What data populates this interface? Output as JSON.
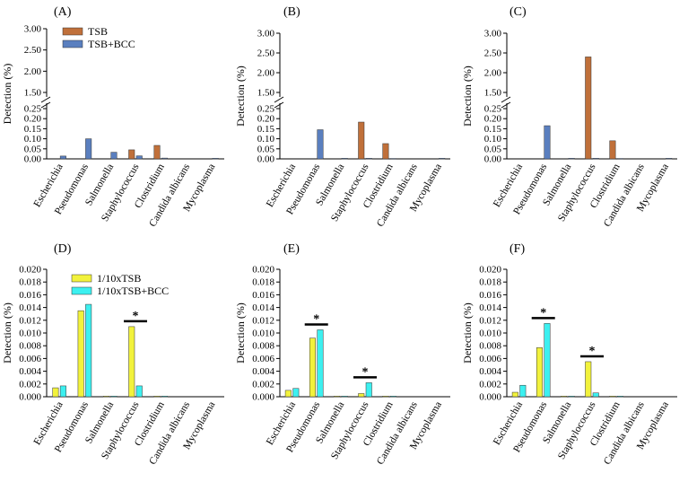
{
  "figure": {
    "categories": [
      "Escherichia",
      "Pseudomonas",
      "Salmonella",
      "Staphylococcus",
      "Clostridium",
      "Candida albicans",
      "Mycoplasma"
    ]
  },
  "chart_data": [
    {
      "type": "bar",
      "panel_label": "(A)",
      "ylabel": "Detection (%)",
      "categories": [
        "Escherichia",
        "Pseudomonas",
        "Salmonella",
        "Staphylococcus",
        "Clostridium",
        "Candida albicans",
        "Mycoplasma"
      ],
      "y_axis_break": true,
      "yticks_lower": [
        "0.00",
        "0.05",
        "0.10",
        "0.15",
        "0.20",
        "0.25"
      ],
      "yticks_upper": [
        "1.50",
        "2.00",
        "2.50",
        "3.00"
      ],
      "legend": [
        "TSB",
        "TSB+BCC"
      ],
      "legend_position": "top-right",
      "series": [
        {
          "name": "TSB",
          "color": "#c0703a",
          "values": [
            0,
            0,
            0,
            0.045,
            0.067,
            0,
            0
          ]
        },
        {
          "name": "TSB+BCC",
          "color": "#5a7fbf",
          "values": [
            0.014,
            0.1,
            0.033,
            0.015,
            0.004,
            0,
            0.003
          ]
        }
      ],
      "significance": []
    },
    {
      "type": "bar",
      "panel_label": "(B)",
      "ylabel": "Detection (%)",
      "categories": [
        "Escherichia",
        "Pseudomonas",
        "Salmonella",
        "Staphylococcus",
        "Clostridium",
        "Candida albicans",
        "Mycoplasma"
      ],
      "y_axis_break": true,
      "yticks_lower": [
        "0.00",
        "0.05",
        "0.10",
        "0.15",
        "0.20",
        "0.25"
      ],
      "yticks_upper": [
        "1.50",
        "2.00",
        "2.50",
        "3.00"
      ],
      "legend": [],
      "legend_position": "",
      "series": [
        {
          "name": "TSB",
          "color": "#c0703a",
          "values": [
            0,
            0,
            0,
            0.183,
            0.076,
            0,
            0
          ]
        },
        {
          "name": "TSB+BCC",
          "color": "#5a7fbf",
          "values": [
            0,
            0.145,
            0.003,
            0.003,
            0.002,
            0,
            0.003
          ]
        }
      ],
      "significance": []
    },
    {
      "type": "bar",
      "panel_label": "(C)",
      "ylabel": "Detection (%)",
      "categories": [
        "Escherichia",
        "Pseudomonas",
        "Salmonella",
        "Staphylococcus",
        "Clostridium",
        "Candida albicans",
        "Mycoplasma"
      ],
      "y_axis_break": true,
      "yticks_lower": [
        "0.00",
        "0.05",
        "0.10",
        "0.15",
        "0.20",
        "0.25"
      ],
      "yticks_upper": [
        "1.50",
        "2.00",
        "2.50",
        "3.00"
      ],
      "legend": [],
      "legend_position": "",
      "series": [
        {
          "name": "TSB",
          "color": "#c0703a",
          "values": [
            0,
            0,
            0,
            2.4,
            0.09,
            0,
            0
          ]
        },
        {
          "name": "TSB+BCC",
          "color": "#5a7fbf",
          "values": [
            0,
            0.165,
            0.003,
            0.003,
            0.002,
            0,
            0.003
          ]
        }
      ],
      "significance": []
    },
    {
      "type": "bar",
      "panel_label": "(D)",
      "ylabel": "Detection (%)",
      "categories": [
        "Escherichia",
        "Pseudomonas",
        "Salmonella",
        "Staphylococcus",
        "Clostridium",
        "Candida albicans",
        "Mycoplasma"
      ],
      "y_axis_break": false,
      "yticks": [
        "0.000",
        "0.002",
        "0.004",
        "0.006",
        "0.008",
        "0.010",
        "0.012",
        "0.014",
        "0.016",
        "0.018",
        "0.020"
      ],
      "legend": [
        "1/10xTSB",
        "1/10xTSB+BCC"
      ],
      "legend_position": "top-left",
      "series": [
        {
          "name": "1/10xTSB",
          "color": "#f2f23c",
          "values": [
            0.0014,
            0.0135,
            0.0001,
            0.011,
            0.0001,
            0,
            0
          ]
        },
        {
          "name": "1/10xTSB+BCC",
          "color": "#3cf0f0",
          "values": [
            0.0017,
            0.0145,
            0.0001,
            0.0017,
            0.0001,
            0,
            0
          ]
        }
      ],
      "significance": [
        {
          "category": "Staphylococcus",
          "label": "*"
        }
      ]
    },
    {
      "type": "bar",
      "panel_label": "(E)",
      "ylabel": "Detection (%)",
      "categories": [
        "Escherichia",
        "Pseudomonas",
        "Salmonella",
        "Staphylococcus",
        "Clostridium",
        "Candida albicans",
        "Mycoplasma"
      ],
      "y_axis_break": false,
      "yticks": [
        "0.000",
        "0.002",
        "0.004",
        "0.006",
        "0.008",
        "0.010",
        "0.012",
        "0.014",
        "0.016",
        "0.018",
        "0.020"
      ],
      "legend": [],
      "legend_position": "",
      "series": [
        {
          "name": "1/10xTSB",
          "color": "#f2f23c",
          "values": [
            0.001,
            0.0092,
            0.0001,
            0.0005,
            0.0001,
            0,
            0
          ]
        },
        {
          "name": "1/10xTSB+BCC",
          "color": "#3cf0f0",
          "values": [
            0.0013,
            0.0105,
            0.0001,
            0.0022,
            0.0001,
            0,
            0
          ]
        }
      ],
      "significance": [
        {
          "category": "Pseudomonas",
          "label": "*"
        },
        {
          "category": "Staphylococcus",
          "label": "*"
        }
      ]
    },
    {
      "type": "bar",
      "panel_label": "(F)",
      "ylabel": "Detection (%)",
      "categories": [
        "Escherichia",
        "Pseudomonas",
        "Salmonella",
        "Staphylococcus",
        "Clostridium",
        "Candida albicans",
        "Mycoplasma"
      ],
      "y_axis_break": false,
      "yticks": [
        "0.000",
        "0.002",
        "0.004",
        "0.006",
        "0.008",
        "0.010",
        "0.012",
        "0.014",
        "0.016",
        "0.018",
        "0.020"
      ],
      "legend": [],
      "legend_position": "",
      "series": [
        {
          "name": "1/10xTSB",
          "color": "#f2f23c",
          "values": [
            0.0007,
            0.0077,
            0.0001,
            0.0055,
            0.0001,
            0,
            0
          ]
        },
        {
          "name": "1/10xTSB+BCC",
          "color": "#3cf0f0",
          "values": [
            0.0018,
            0.0115,
            0.0001,
            0.0006,
            0.0001,
            0,
            0
          ]
        }
      ],
      "significance": [
        {
          "category": "Pseudomonas",
          "label": "*"
        },
        {
          "category": "Staphylococcus",
          "label": "*"
        }
      ]
    }
  ]
}
